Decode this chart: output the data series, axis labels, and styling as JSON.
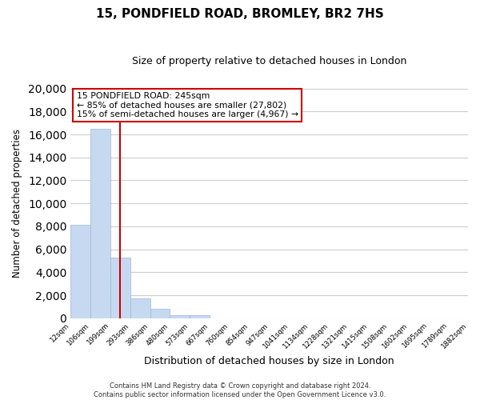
{
  "title": "15, PONDFIELD ROAD, BROMLEY, BR2 7HS",
  "subtitle": "Size of property relative to detached houses in London",
  "xlabel": "Distribution of detached houses by size in London",
  "ylabel": "Number of detached properties",
  "bar_heights": [
    8150,
    16500,
    5300,
    1750,
    800,
    270,
    270,
    0,
    0,
    0,
    0,
    0,
    0,
    0,
    0,
    0,
    0,
    0,
    0,
    0
  ],
  "bar_labels": [
    "12sqm",
    "106sqm",
    "199sqm",
    "293sqm",
    "386sqm",
    "480sqm",
    "573sqm",
    "667sqm",
    "760sqm",
    "854sqm",
    "947sqm",
    "1041sqm",
    "1134sqm",
    "1228sqm",
    "1321sqm",
    "1415sqm",
    "1508sqm",
    "1602sqm",
    "1695sqm",
    "1789sqm",
    "1882sqm"
  ],
  "bar_color": "#c6d9f0",
  "bar_edge_color": "#9ab8d8",
  "vline_color": "#cc0000",
  "annotation_title": "15 PONDFIELD ROAD: 245sqm",
  "annotation_line1": "← 85% of detached houses are smaller (27,802)",
  "annotation_line2": "15% of semi-detached houses are larger (4,967) →",
  "annotation_box_facecolor": "#ffffff",
  "annotation_box_edgecolor": "#cc0000",
  "ylim": [
    0,
    20000
  ],
  "yticks": [
    0,
    2000,
    4000,
    6000,
    8000,
    10000,
    12000,
    14000,
    16000,
    18000,
    20000
  ],
  "footer_line1": "Contains HM Land Registry data © Crown copyright and database right 2024.",
  "footer_line2": "Contains public sector information licensed under the Open Government Licence v3.0.",
  "background_color": "#ffffff",
  "plot_background_color": "#ffffff",
  "grid_color": "#cccccc"
}
